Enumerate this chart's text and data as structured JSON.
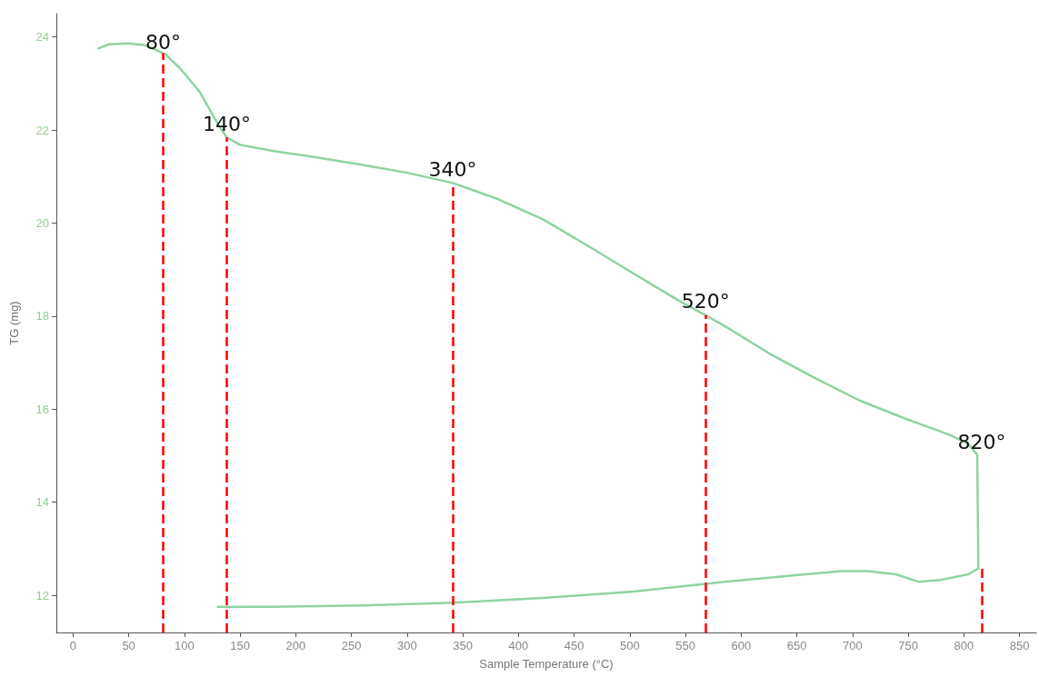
{
  "chart_data": {
    "type": "line",
    "xlabel": "Sample Temperature (°C)",
    "ylabel": "TG (mg)",
    "x": [
      22.7,
      32,
      49,
      65,
      83,
      97,
      114,
      130,
      138,
      150,
      179,
      219,
      260,
      300,
      341,
      382,
      422,
      463,
      503,
      544,
      568,
      585,
      625,
      666,
      706,
      747,
      787,
      804,
      812,
      813,
      804,
      779,
      759,
      739,
      714,
      690,
      649,
      585,
      503,
      422,
      341,
      260,
      179,
      130
    ],
    "series": [
      {
        "color": "#8fd3a0",
        "values": [
          23.75,
          23.84,
          23.86,
          23.82,
          23.63,
          23.3,
          22.81,
          22.13,
          21.84,
          21.68,
          21.55,
          21.41,
          21.25,
          21.08,
          20.86,
          20.51,
          20.08,
          19.5,
          18.92,
          18.33,
          18.02,
          17.79,
          17.2,
          16.67,
          16.19,
          15.8,
          15.45,
          15.25,
          15.02,
          12.58,
          12.45,
          12.33,
          12.29,
          12.45,
          12.52,
          12.52,
          12.43,
          12.29,
          12.08,
          11.94,
          11.84,
          11.78,
          11.75,
          11.75
        ]
      }
    ],
    "xlim": [
      -15,
      865
    ],
    "xticks": [
      0,
      50,
      100,
      150,
      200,
      250,
      300,
      350,
      400,
      450,
      500,
      550,
      600,
      650,
      700,
      750,
      800,
      850
    ],
    "ylim": [
      11.2,
      24.5
    ],
    "yticks": [
      12,
      14,
      16,
      18,
      20,
      22,
      24
    ],
    "ref_lines": [
      {
        "axis": "x",
        "value": 81,
        "color": "#ff0000",
        "line_style": "dashed"
      },
      {
        "axis": "x",
        "value": 138,
        "color": "#ff0000",
        "line_style": "dashed"
      },
      {
        "axis": "x",
        "value": 341,
        "color": "#ff0000",
        "line_style": "dashed"
      },
      {
        "axis": "x",
        "value": 568,
        "color": "#ff0000",
        "line_style": "dashed"
      },
      {
        "axis": "x",
        "value": 816,
        "color": "#ff0000",
        "line_style": "dashed"
      }
    ],
    "annotations": [
      {
        "text": "80°",
        "x": 81,
        "y": 23.6
      },
      {
        "text": "140°",
        "x": 138,
        "y": 21.84
      },
      {
        "text": "340°",
        "x": 341,
        "y": 20.86
      },
      {
        "text": "520°",
        "x": 568,
        "y": 18.02
      },
      {
        "text": "820°",
        "x": 816,
        "y": 15.0
      }
    ],
    "grid": false,
    "marker": "none",
    "line_style": "solid"
  }
}
